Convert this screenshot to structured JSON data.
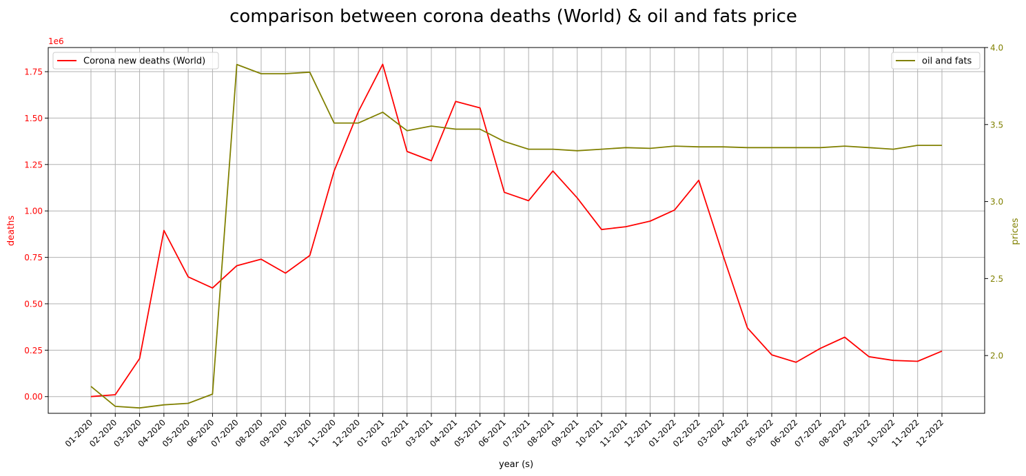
{
  "chart_data": {
    "type": "line",
    "title": "comparison between corona deaths (World) & oil and fats price",
    "xlabel": "year (s)",
    "ylabel_left": "deaths",
    "ylabel_right": "prices",
    "left_offset_label": "1e6",
    "categories": [
      "01-2020",
      "02-2020",
      "03-2020",
      "04-2020",
      "05-2020",
      "06-2020",
      "07-2020",
      "08-2020",
      "09-2020",
      "10-2020",
      "11-2020",
      "12-2020",
      "01-2021",
      "02-2021",
      "03-2021",
      "04-2021",
      "05-2021",
      "06-2021",
      "07-2021",
      "08-2021",
      "09-2021",
      "10-2021",
      "11-2021",
      "12-2021",
      "01-2022",
      "02-2022",
      "03-2022",
      "04-2022",
      "05-2022",
      "06-2022",
      "07-2022",
      "08-2022",
      "09-2022",
      "10-2022",
      "11-2022",
      "12-2022"
    ],
    "left_ticks": [
      "0.00",
      "0.25",
      "0.50",
      "0.75",
      "1.00",
      "1.25",
      "1.50",
      "1.75"
    ],
    "left_tick_values": [
      0,
      0.25,
      0.5,
      0.75,
      1.0,
      1.25,
      1.5,
      1.75
    ],
    "right_ticks": [
      "2.0",
      "2.5",
      "3.0",
      "3.5",
      "4.0"
    ],
    "right_tick_values": [
      2.0,
      2.5,
      3.0,
      3.5,
      4.0
    ],
    "ylim_left": [
      -0.09,
      1.88
    ],
    "ylim_right": [
      1.625,
      4.0
    ],
    "grid": true,
    "series": [
      {
        "name": "Corona new deaths (World)",
        "axis": "left",
        "color": "#ff0000",
        "legend_position": "upper-left",
        "values": [
          0.0,
          0.01,
          0.205,
          0.895,
          0.645,
          0.585,
          0.705,
          0.74,
          0.665,
          0.76,
          1.215,
          1.535,
          1.79,
          1.32,
          1.27,
          1.59,
          1.555,
          1.1,
          1.055,
          1.215,
          1.07,
          0.9,
          0.915,
          0.945,
          1.005,
          1.165,
          0.76,
          0.37,
          0.225,
          0.185,
          0.26,
          0.32,
          0.215,
          0.195,
          0.19,
          0.245
        ]
      },
      {
        "name": "oil and fats",
        "axis": "right",
        "color": "#808000",
        "legend_position": "upper-right",
        "values": [
          1.8,
          1.67,
          1.66,
          1.68,
          1.69,
          1.75,
          3.89,
          3.83,
          3.83,
          3.84,
          3.51,
          3.51,
          3.58,
          3.46,
          3.49,
          3.47,
          3.47,
          3.39,
          3.34,
          3.34,
          3.33,
          3.34,
          3.35,
          3.345,
          3.36,
          3.355,
          3.355,
          3.35,
          3.35,
          3.35,
          3.35,
          3.36,
          3.35,
          3.34,
          3.365,
          3.365
        ]
      }
    ]
  }
}
